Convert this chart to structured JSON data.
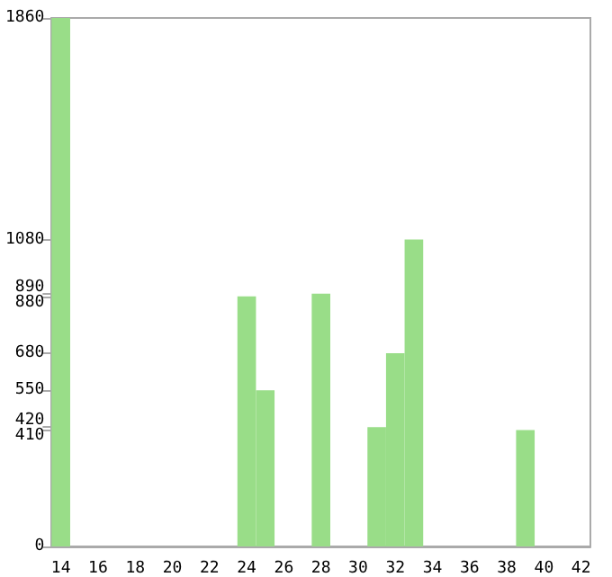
{
  "chart_data": {
    "type": "bar",
    "categories": [
      "14",
      null,
      "16",
      null,
      "18",
      null,
      "20",
      null,
      "22",
      null,
      "24",
      null,
      "26",
      null,
      "28",
      null,
      "30",
      null,
      "32",
      null,
      "34",
      null,
      "36",
      null,
      "38",
      null,
      "40",
      null,
      "42"
    ],
    "series": [
      {
        "color": "#99dd88",
        "values": [
          1860,
          0,
          0,
          0,
          0,
          0,
          0,
          0,
          0,
          0,
          880,
          550,
          0,
          0,
          890,
          0,
          0,
          420,
          680,
          1080,
          0,
          0,
          0,
          0,
          0,
          410,
          0,
          0,
          0
        ]
      }
    ],
    "ylim": [
      0,
      1860
    ],
    "yticks": [
      0,
      410,
      420,
      550,
      680,
      880,
      890,
      1080,
      1860
    ],
    "grid": false
  }
}
